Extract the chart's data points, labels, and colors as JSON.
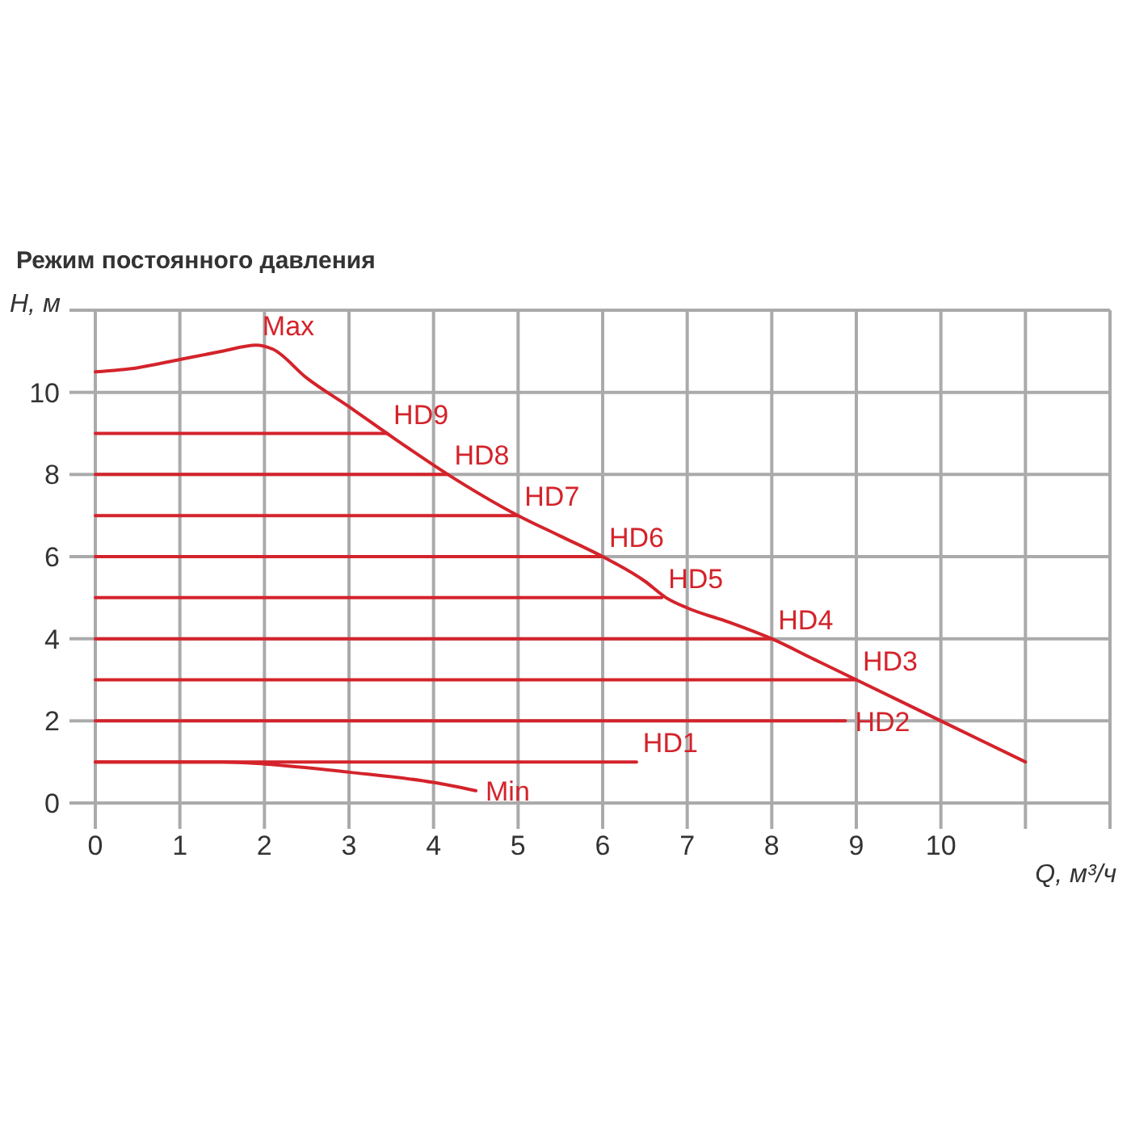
{
  "chart_data": {
    "type": "line",
    "title": "Режим постоянного давления",
    "xlabel": "Q, м³/ч",
    "ylabel": "H, м",
    "xlim": [
      0,
      12
    ],
    "ylim": [
      0,
      12
    ],
    "xticks": [
      0,
      1,
      2,
      3,
      4,
      5,
      6,
      7,
      8,
      9,
      10,
      {
        "value": 11,
        "label": null
      },
      {
        "value": 12,
        "label": null
      }
    ],
    "yticks": [
      0,
      2,
      4,
      6,
      8,
      10,
      {
        "value": 12,
        "label": null
      }
    ],
    "grid": true,
    "series": [
      {
        "name": "Max",
        "color": "#d4232b",
        "x": [
          0,
          0.5,
          1,
          1.5,
          1.9,
          2.1,
          2.5,
          3,
          3.45,
          4.17,
          5,
          5.5,
          6,
          6.5,
          6.75,
          7,
          7.5,
          8,
          8.5,
          9,
          10,
          11
        ],
        "values": [
          10.5,
          10.6,
          10.8,
          11.0,
          11.15,
          11.05,
          10.35,
          9.65,
          9,
          8,
          7,
          6.5,
          6,
          5.4,
          5,
          4.75,
          4.4,
          4,
          3.5,
          3,
          2,
          1
        ]
      },
      {
        "name": "HD9",
        "color": "#d4232b",
        "x": [
          0,
          3.45
        ],
        "values": [
          9,
          9
        ]
      },
      {
        "name": "HD8",
        "color": "#d4232b",
        "x": [
          0,
          4.17
        ],
        "values": [
          8,
          8
        ]
      },
      {
        "name": "HD7",
        "color": "#d4232b",
        "x": [
          0,
          5
        ],
        "values": [
          7,
          7
        ]
      },
      {
        "name": "HD6",
        "color": "#d4232b",
        "x": [
          0,
          6
        ],
        "values": [
          6,
          6
        ]
      },
      {
        "name": "HD5",
        "color": "#d4232b",
        "x": [
          0,
          6.7
        ],
        "values": [
          5,
          5
        ]
      },
      {
        "name": "HD4",
        "color": "#d4232b",
        "x": [
          0,
          8
        ],
        "values": [
          4,
          4
        ]
      },
      {
        "name": "HD3",
        "color": "#d4232b",
        "x": [
          0,
          9
        ],
        "values": [
          3,
          3
        ]
      },
      {
        "name": "HD2",
        "color": "#d4232b",
        "x": [
          0,
          8.87
        ],
        "values": [
          2,
          2
        ]
      },
      {
        "name": "HD1",
        "color": "#d4232b",
        "x": [
          0,
          6.4
        ],
        "values": [
          1,
          1
        ]
      },
      {
        "name": "Min",
        "color": "#d4232b",
        "x": [
          0,
          1.5,
          2,
          3,
          4,
          4.5
        ],
        "values": [
          1,
          1,
          0.95,
          0.75,
          0.5,
          0.3
        ]
      }
    ]
  }
}
